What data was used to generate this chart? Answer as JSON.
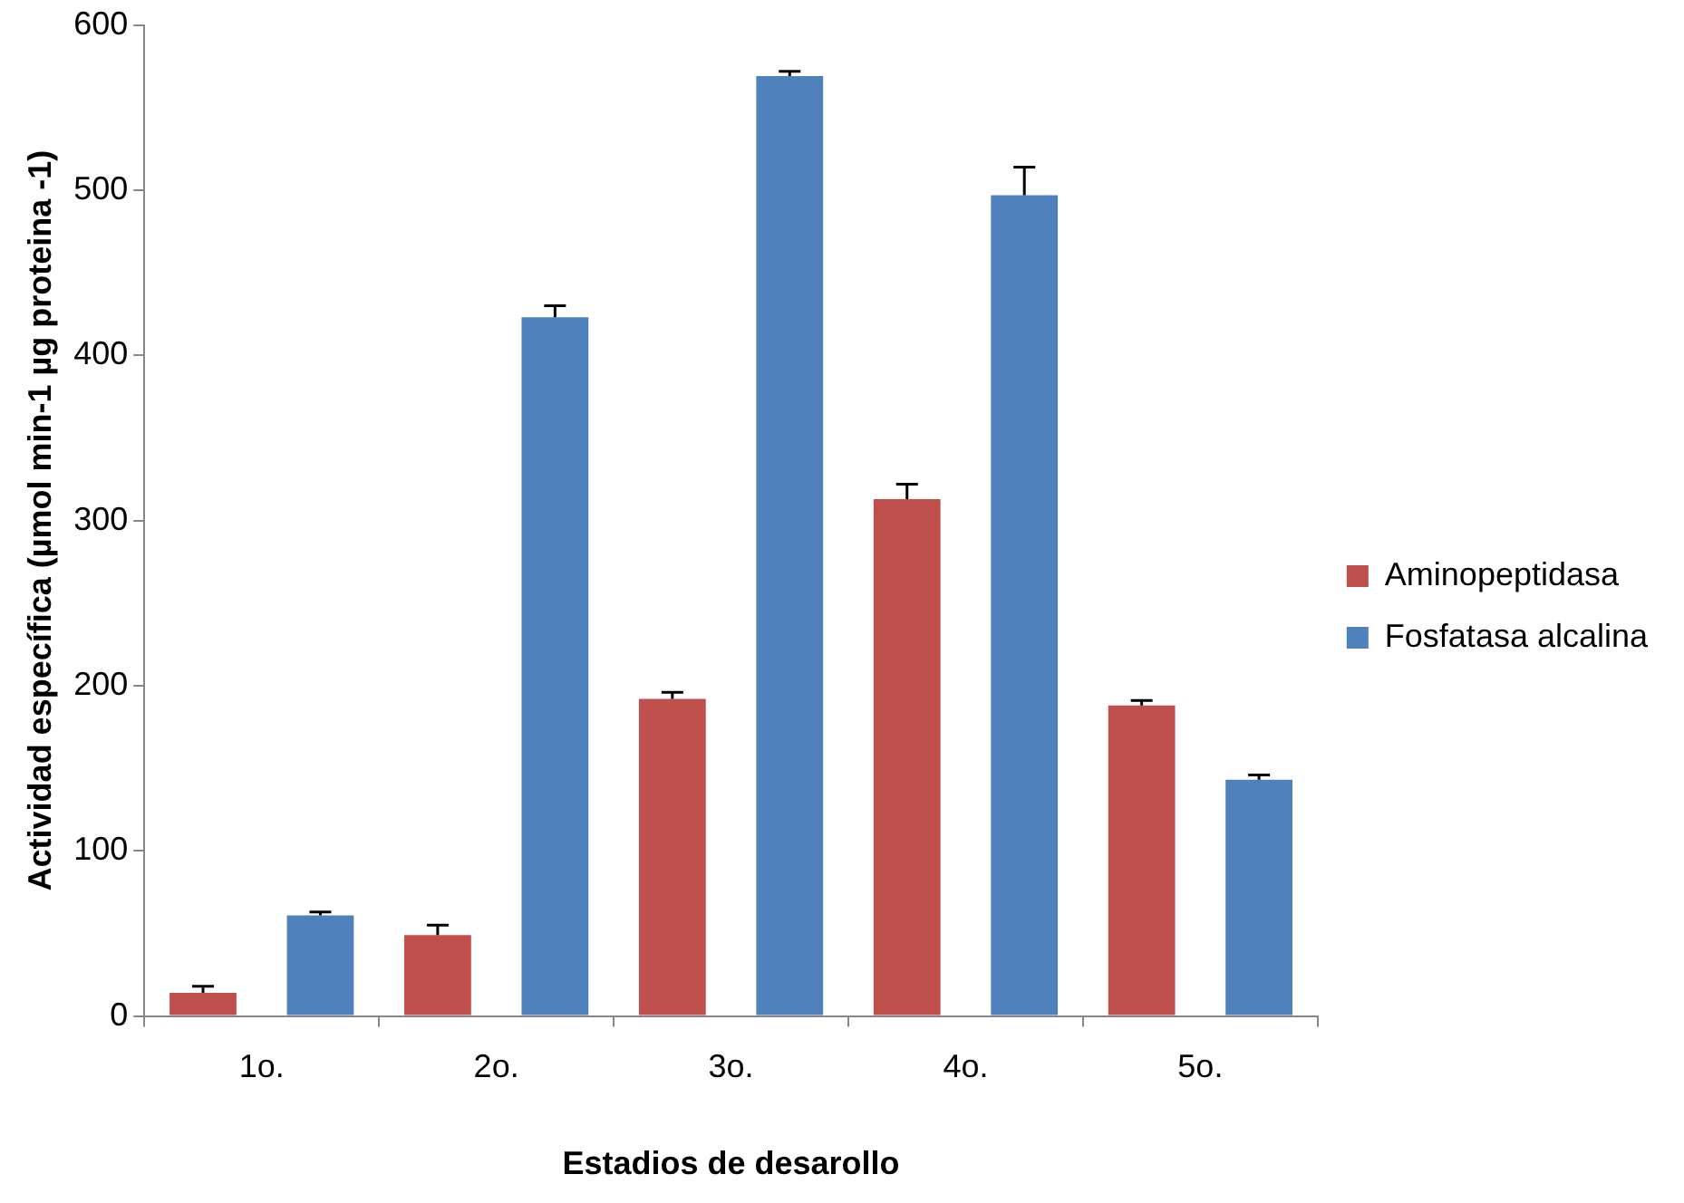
{
  "chart_data": {
    "type": "bar",
    "xlabel": "Estadios de desarollo",
    "ylabel": "Actividad específica (µmol min-1 µg proteina -1)",
    "categories": [
      "1o.",
      "2o.",
      "3o.",
      "4o.",
      "5o."
    ],
    "series": [
      {
        "name": "Aminopeptidasa",
        "color": "#c0504d",
        "values": [
          14,
          49,
          192,
          313,
          188
        ],
        "errors": [
          [
            14,
            18
          ],
          [
            49,
            55
          ],
          [
            192,
            196
          ],
          [
            313,
            322
          ],
          [
            188,
            191
          ]
        ]
      },
      {
        "name": "Fosfatasa alcalina",
        "color": "#4f81bd",
        "values": [
          61,
          423,
          569,
          497,
          143
        ],
        "errors": [
          [
            61,
            63
          ],
          [
            423,
            430
          ],
          [
            569,
            572
          ],
          [
            497,
            514
          ],
          [
            143,
            146
          ]
        ]
      }
    ],
    "ylim": [
      0,
      600
    ],
    "yticks": [
      0,
      100,
      200,
      300,
      400,
      500,
      600
    ],
    "grid": false,
    "legend": "right"
  }
}
